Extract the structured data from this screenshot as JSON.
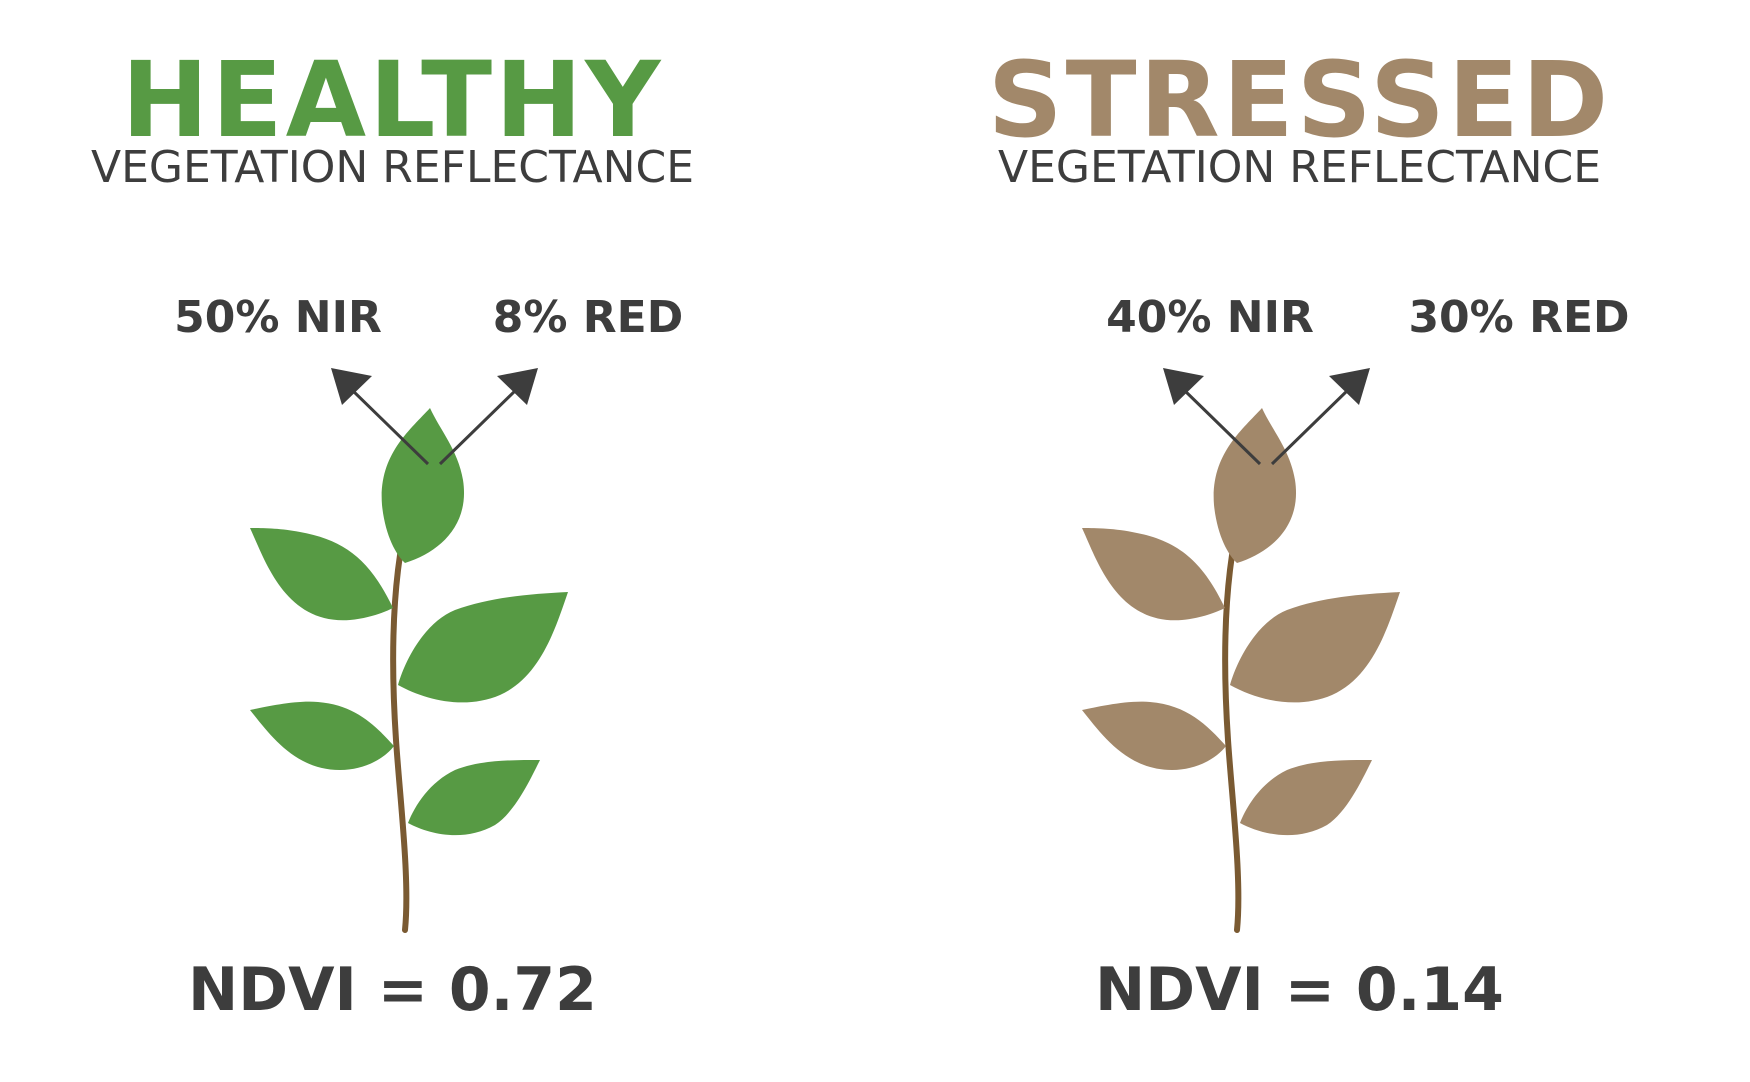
{
  "colors": {
    "healthy": "#579a44",
    "stressed": "#a2886a",
    "stem": "#7a5a32",
    "text": "#3d3d3d",
    "arrow": "#3d3d3d"
  },
  "panels": [
    {
      "headline": "HEALTHY",
      "subtitle": "VEGETATION REFLECTANCE",
      "nir_label": "50% NIR",
      "red_label": "8% RED",
      "ndvi_label": "NDVI =",
      "ndvi_value": "0.72"
    },
    {
      "headline": "STRESSED",
      "subtitle": "VEGETATION REFLECTANCE",
      "nir_label": "40% NIR",
      "red_label": "30% RED",
      "ndvi_label": "NDVI =",
      "ndvi_value": "0.14"
    }
  ]
}
